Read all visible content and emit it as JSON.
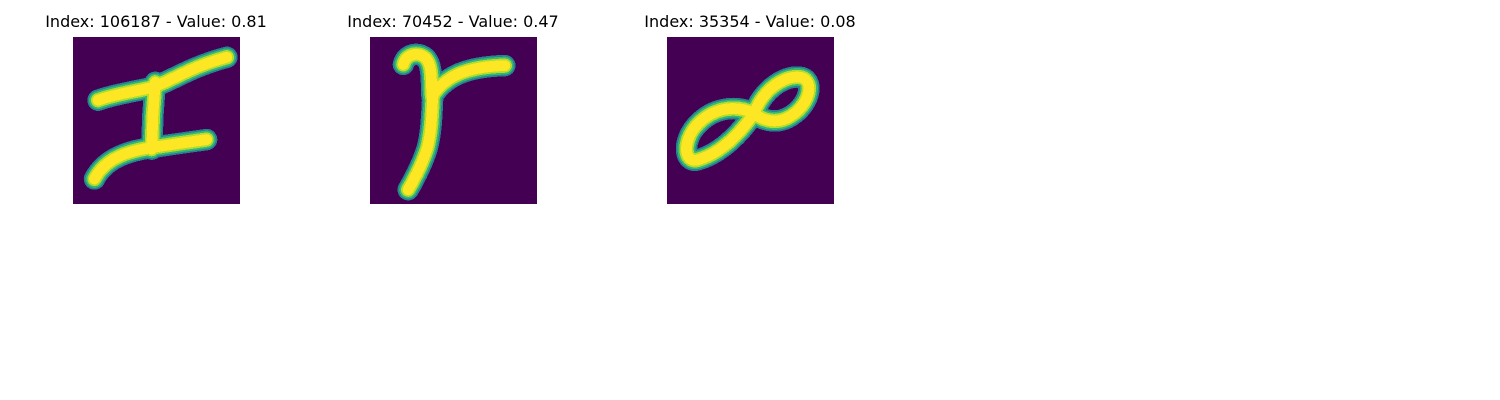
{
  "colors": {
    "background": "#440154",
    "stroke_core": "#fde725",
    "stroke_mid": "#b5de2b",
    "stroke_edge": "#35b779",
    "stroke_fade": "#26828e"
  },
  "panels": [
    {
      "title": "Index: 106187 - Value: 0.81",
      "glyph": "letter-I-icon"
    },
    {
      "title": "Index: 70452 - Value: 0.47",
      "glyph": "letter-Y-icon"
    },
    {
      "title": "Index: 35354 - Value: 0.08",
      "glyph": "infinity-icon"
    }
  ]
}
